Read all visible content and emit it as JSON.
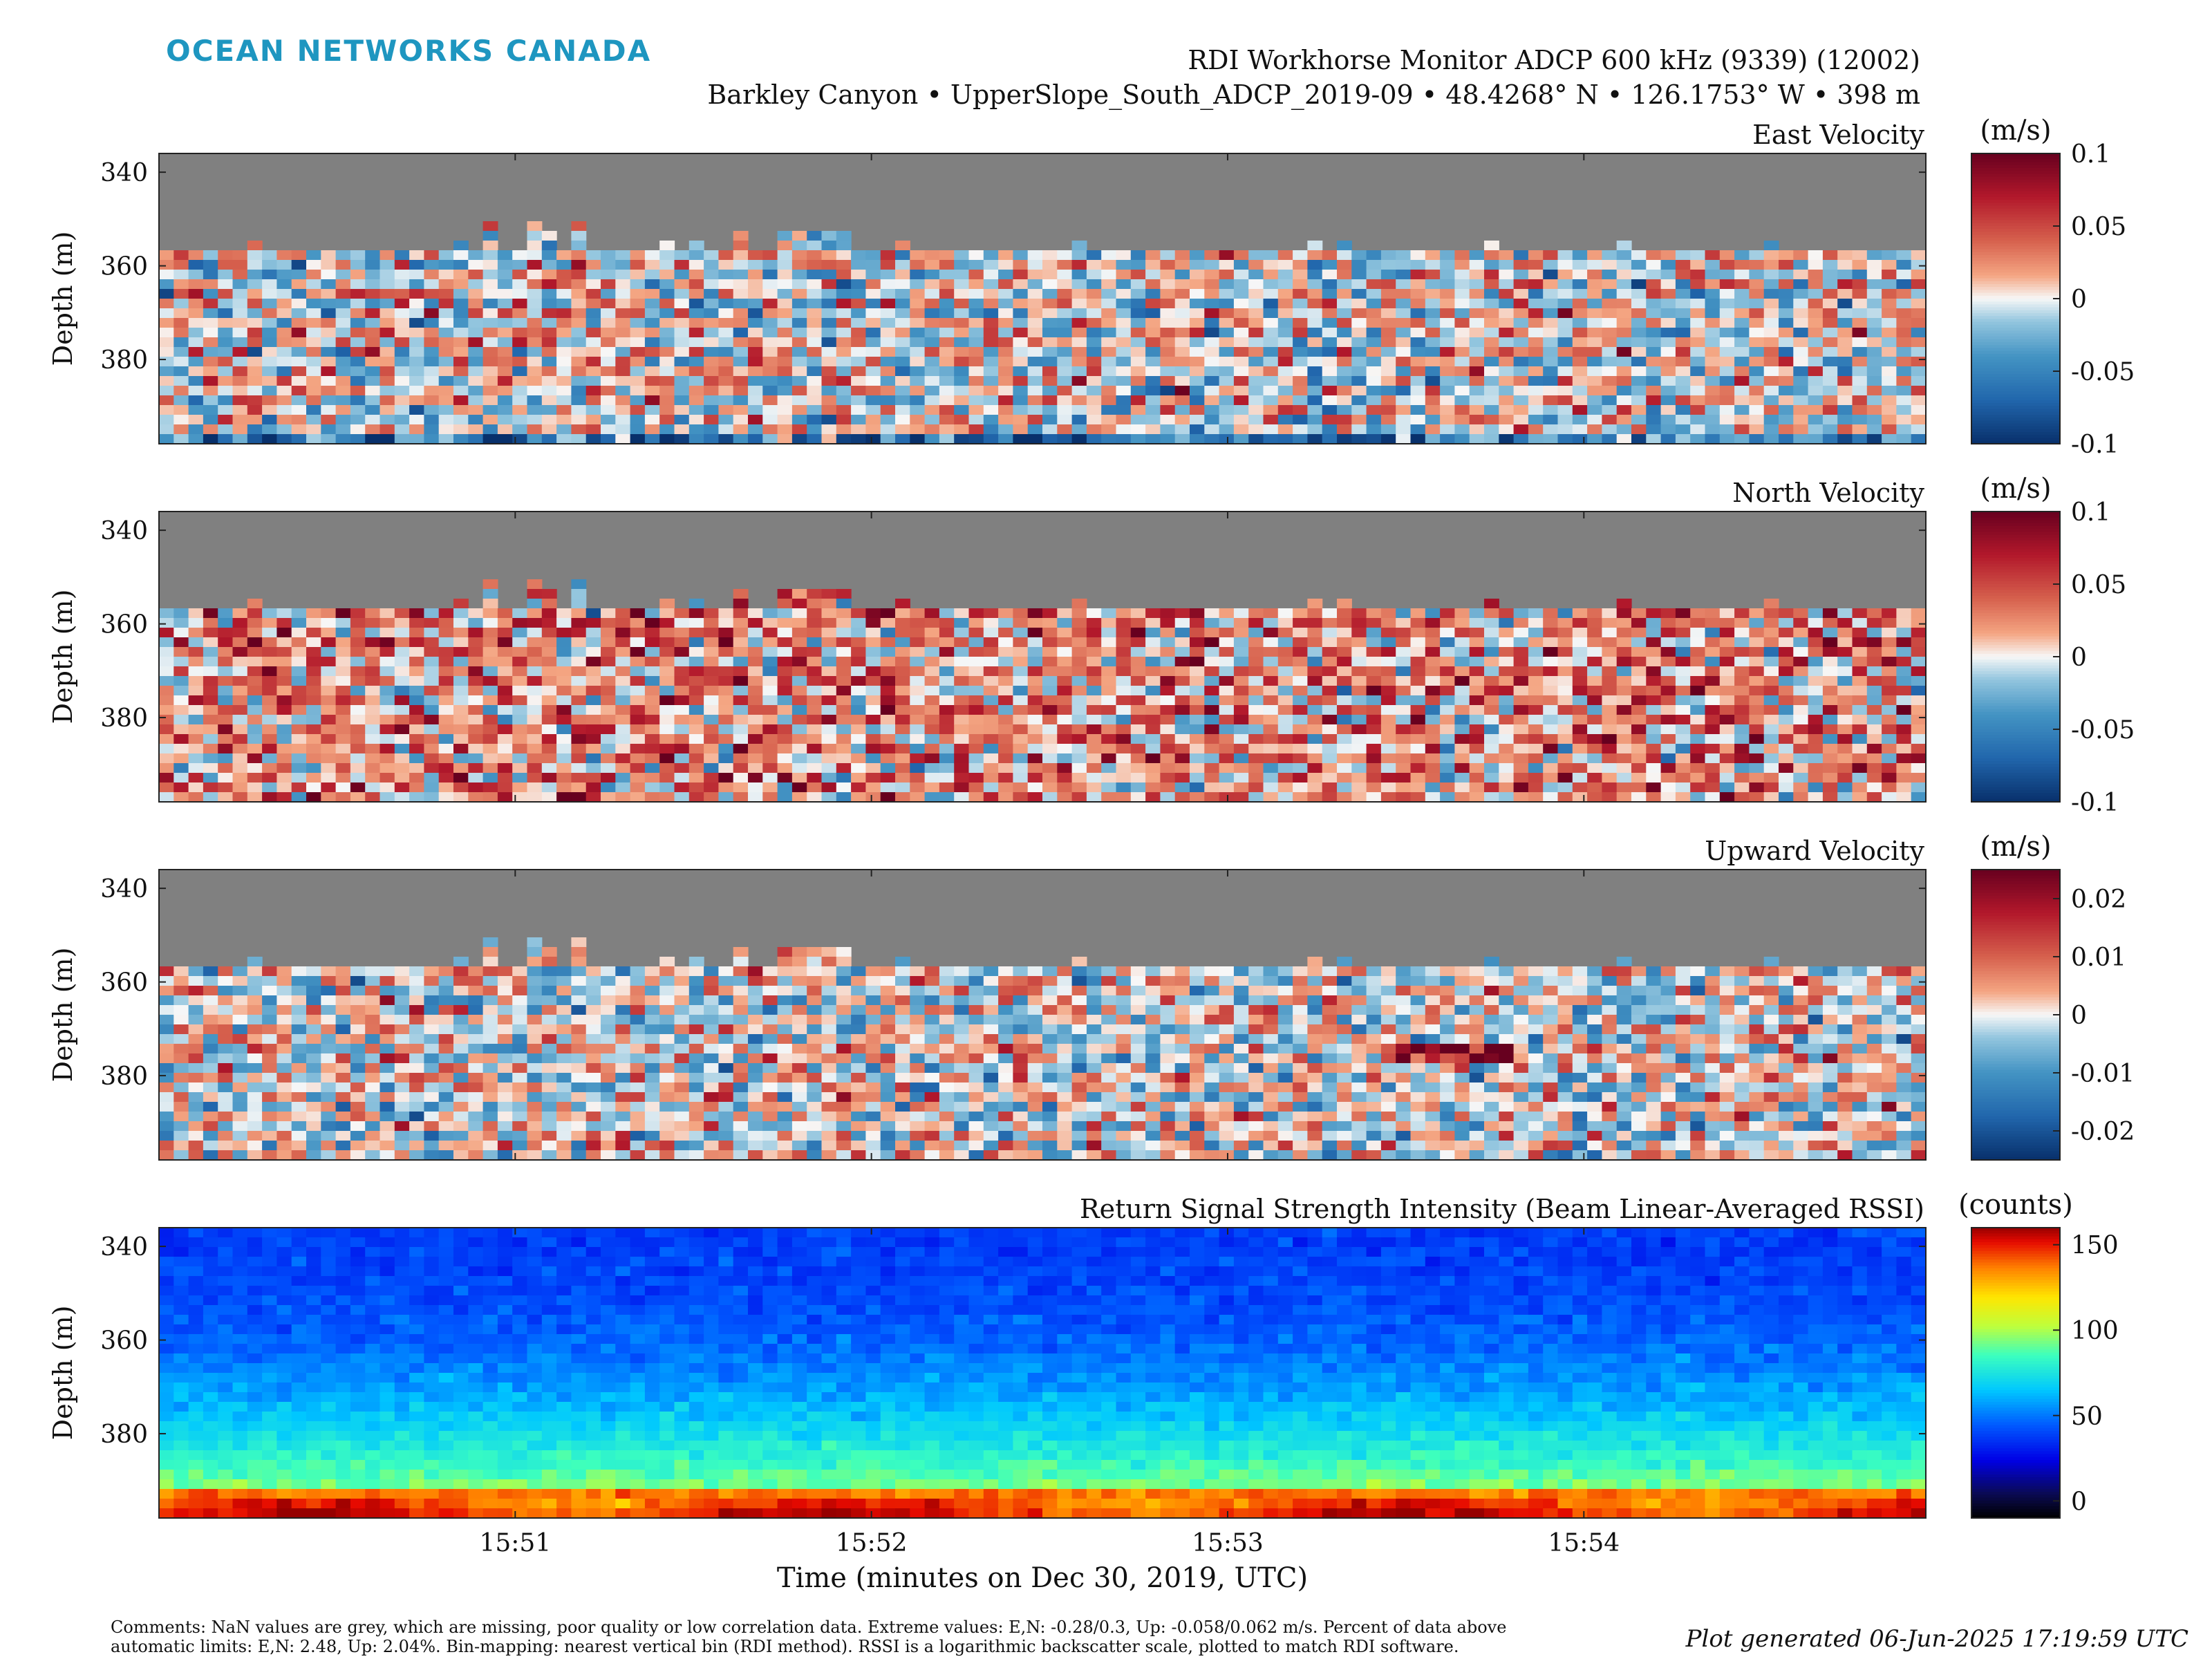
{
  "header": {
    "logo_text": "OCEAN NETWORKS CANADA",
    "logo_color": "#1e96c0",
    "title_line1": "RDI Workhorse Monitor ADCP 600 kHz (9339) (12002)",
    "title_line2": "Barkley Canyon • UpperSlope_South_ADCP_2019-09 • 48.4268° N • 126.1753° W • 398 m"
  },
  "chart_data": [
    {
      "type": "heatmap",
      "title": "East Velocity",
      "ylabel": "Depth (m)",
      "y_ticks": [
        340,
        360,
        380
      ],
      "ylim": [
        336,
        398
      ],
      "colorbar": {
        "label": "(m/s)",
        "colormap": "diverging-RdBu",
        "range": [
          -0.1,
          0.1
        ],
        "ticks": [
          "0.1",
          "0.05",
          "0",
          "-0.05",
          "-0.1"
        ]
      },
      "nan_color": "#808080",
      "data_top_depth_m": 357,
      "x_ticks_shown": false,
      "description_values": "mixed positive/negative east velocity, mostly within ±0.05 m/s; stronger negative band near 396 m"
    },
    {
      "type": "heatmap",
      "title": "North Velocity",
      "ylabel": "Depth (m)",
      "y_ticks": [
        340,
        360,
        380
      ],
      "ylim": [
        336,
        398
      ],
      "colorbar": {
        "label": "(m/s)",
        "colormap": "diverging-RdBu",
        "range": [
          -0.1,
          0.1
        ],
        "ticks": [
          "0.1",
          "0.05",
          "0",
          "-0.05",
          "-0.1"
        ]
      },
      "nan_color": "#808080",
      "data_top_depth_m": 357,
      "x_ticks_shown": false
    },
    {
      "type": "heatmap",
      "title": "Upward Velocity",
      "ylabel": "Depth (m)",
      "y_ticks": [
        340,
        360,
        380
      ],
      "ylim": [
        336,
        398
      ],
      "colorbar": {
        "label": "(m/s)",
        "colormap": "diverging-RdBu",
        "range": [
          -0.025,
          0.025
        ],
        "ticks": [
          "0.02",
          "0.01",
          "0",
          "-0.01",
          "-0.02"
        ]
      },
      "nan_color": "#808080",
      "data_top_depth_m": 357,
      "x_ticks_shown": false
    },
    {
      "type": "heatmap",
      "title": "Return Signal Strength Intensity (Beam Linear-Averaged RSSI)",
      "ylabel": "Depth (m)",
      "y_ticks": [
        340,
        360,
        380
      ],
      "ylim": [
        336,
        398
      ],
      "colorbar": {
        "label": "(counts)",
        "colormap": "jet",
        "range": [
          -10,
          160
        ],
        "ticks": [
          "150",
          "100",
          "50",
          "0"
        ]
      },
      "x_ticks": [
        "15:51",
        "15:52",
        "15:53",
        "15:54"
      ],
      "xlabel": "Time (minutes on Dec 30, 2019, UTC)",
      "x_ticks_shown": true
    }
  ],
  "footer": {
    "comments_line1": "Comments: NaN values are grey, which are missing, poor quality or low correlation data. Extreme values: E,N: -0.28/0.3, Up: -0.058/0.062 m/s. Percent of data above",
    "comments_line2": "automatic limits: E,N: 2.48, Up: 2.04%. Bin-mapping: nearest vertical bin (RDI method). RSSI is a logarithmic backscatter scale, plotted to match RDI software.",
    "generated": "Plot generated 06-Jun-2025 17:19:59 UTC"
  }
}
